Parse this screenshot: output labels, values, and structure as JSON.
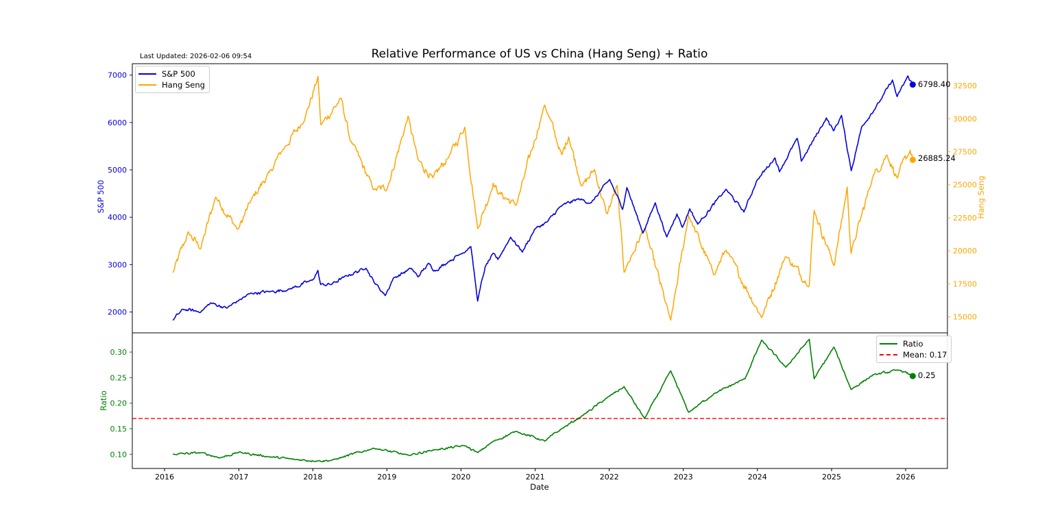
{
  "header": {
    "title": "Relative Performance of US vs China (Hang Seng) + Ratio",
    "last_updated": "Last Updated: 2026-02-06 09:54"
  },
  "colors": {
    "sp500": "#0000dd",
    "hang_seng": "#ffa500",
    "ratio": "#008000",
    "mean": "#ff0000"
  },
  "chart_data": [
    {
      "type": "line",
      "panel": "top",
      "x_range": [
        "2015-07-26",
        "2026-07-26"
      ],
      "xlabel": "",
      "x_ticks": [
        "2016",
        "2017",
        "2018",
        "2019",
        "2020",
        "2021",
        "2022",
        "2023",
        "2024",
        "2025",
        "2026"
      ],
      "grid": false,
      "legend_position": "upper-left",
      "y_left": {
        "label": "S&P 500",
        "range": [
          1560,
          7240
        ],
        "ticks": [
          "2000",
          "3000",
          "4000",
          "5000",
          "6000",
          "7000"
        ]
      },
      "y_right": {
        "label": "Hang Seng",
        "range": [
          13780,
          34170
        ],
        "ticks": [
          "15000",
          "17500",
          "20000",
          "22500",
          "25000",
          "27500",
          "30000",
          "32500"
        ]
      },
      "series": [
        {
          "name": "S&P 500",
          "axis": "left",
          "end_label": "6798.40",
          "points": [
            [
              "2016-02-11",
              1829
            ],
            [
              "2016-04-01",
              2060
            ],
            [
              "2016-06-27",
              2000
            ],
            [
              "2016-08-15",
              2190
            ],
            [
              "2016-11-04",
              2085
            ],
            [
              "2016-12-30",
              2240
            ],
            [
              "2017-03-01",
              2395
            ],
            [
              "2017-06-01",
              2430
            ],
            [
              "2017-09-01",
              2470
            ],
            [
              "2017-12-29",
              2673
            ],
            [
              "2018-01-26",
              2872
            ],
            [
              "2018-02-08",
              2581
            ],
            [
              "2018-04-02",
              2582
            ],
            [
              "2018-06-01",
              2734
            ],
            [
              "2018-09-20",
              2930
            ],
            [
              "2018-10-29",
              2640
            ],
            [
              "2018-12-24",
              2351
            ],
            [
              "2019-02-01",
              2706
            ],
            [
              "2019-05-01",
              2923
            ],
            [
              "2019-06-03",
              2744
            ],
            [
              "2019-07-26",
              3025
            ],
            [
              "2019-08-27",
              2869
            ],
            [
              "2019-11-01",
              3066
            ],
            [
              "2019-12-31",
              3230
            ],
            [
              "2020-02-19",
              3386
            ],
            [
              "2020-03-23",
              2237
            ],
            [
              "2020-04-29",
              2939
            ],
            [
              "2020-06-08",
              3232
            ],
            [
              "2020-07-01",
              3115
            ],
            [
              "2020-09-02",
              3580
            ],
            [
              "2020-10-30",
              3270
            ],
            [
              "2020-12-31",
              3756
            ],
            [
              "2021-03-01",
              3901
            ],
            [
              "2021-05-07",
              4232
            ],
            [
              "2021-08-02",
              4387
            ],
            [
              "2021-10-04",
              4300
            ],
            [
              "2022-01-03",
              4796
            ],
            [
              "2022-03-08",
              4170
            ],
            [
              "2022-03-29",
              4631
            ],
            [
              "2022-06-16",
              3666
            ],
            [
              "2022-08-16",
              4305
            ],
            [
              "2022-10-12",
              3577
            ],
            [
              "2022-12-01",
              4076
            ],
            [
              "2022-12-28",
              3783
            ],
            [
              "2023-02-02",
              4179
            ],
            [
              "2023-03-13",
              3855
            ],
            [
              "2023-07-31",
              4589
            ],
            [
              "2023-10-27",
              4117
            ],
            [
              "2023-12-29",
              4770
            ],
            [
              "2024-03-28",
              5254
            ],
            [
              "2024-04-19",
              4967
            ],
            [
              "2024-07-16",
              5667
            ],
            [
              "2024-08-05",
              5186
            ],
            [
              "2024-12-06",
              6090
            ],
            [
              "2025-01-10",
              5827
            ],
            [
              "2025-02-19",
              6144
            ],
            [
              "2025-04-08",
              4982
            ],
            [
              "2025-05-30",
              5912
            ],
            [
              "2025-08-29",
              6460
            ],
            [
              "2025-10-28",
              6890
            ],
            [
              "2025-11-20",
              6538
            ],
            [
              "2026-01-12",
              6977
            ],
            [
              "2026-02-05",
              6798.4
            ]
          ]
        },
        {
          "name": "Hang Seng",
          "axis": "right",
          "end_label": "26885.24",
          "points": [
            [
              "2016-02-11",
              18319
            ],
            [
              "2016-04-27",
              21388
            ],
            [
              "2016-06-27",
              20172
            ],
            [
              "2016-09-09",
              24099
            ],
            [
              "2016-12-28",
              21574
            ],
            [
              "2017-03-01",
              23776
            ],
            [
              "2017-06-01",
              25925
            ],
            [
              "2017-08-01",
              27540
            ],
            [
              "2017-11-22",
              30003
            ],
            [
              "2018-01-26",
              33154
            ],
            [
              "2018-02-09",
              29507
            ],
            [
              "2018-05-22",
              31541
            ],
            [
              "2018-07-02",
              28500
            ],
            [
              "2018-10-30",
              24585
            ],
            [
              "2019-01-03",
              24739
            ],
            [
              "2019-04-15",
              30129
            ],
            [
              "2019-06-03",
              26893
            ],
            [
              "2019-08-15",
              25495
            ],
            [
              "2019-11-01",
              27100
            ],
            [
              "2020-01-20",
              29348
            ],
            [
              "2020-03-23",
              21696
            ],
            [
              "2020-06-08",
              25057
            ],
            [
              "2020-06-30",
              24427
            ],
            [
              "2020-09-30",
              23459
            ],
            [
              "2021-02-17",
              31084
            ],
            [
              "2021-05-12",
              27231
            ],
            [
              "2021-06-15",
              28638
            ],
            [
              "2021-08-20",
              24849
            ],
            [
              "2021-10-20",
              26136
            ],
            [
              "2021-12-20",
              22745
            ],
            [
              "2022-02-09",
              24924
            ],
            [
              "2022-03-15",
              18415
            ],
            [
              "2022-06-24",
              21719
            ],
            [
              "2022-10-31",
              14687
            ],
            [
              "2023-01-27",
              22689
            ],
            [
              "2023-05-31",
              18234
            ],
            [
              "2023-07-31",
              20079
            ],
            [
              "2024-01-22",
              14961
            ],
            [
              "2024-05-20",
              19636
            ],
            [
              "2024-09-13",
              17369
            ],
            [
              "2024-10-07",
              23100
            ],
            [
              "2025-01-13",
              18874
            ],
            [
              "2025-03-19",
              24771
            ],
            [
              "2025-04-07",
              19828
            ],
            [
              "2025-07-24",
              25667
            ],
            [
              "2025-10-02",
              27287
            ],
            [
              "2025-11-20",
              25520
            ],
            [
              "2026-01-23",
              27608
            ],
            [
              "2026-02-05",
              26885.24
            ]
          ]
        }
      ]
    },
    {
      "type": "line",
      "panel": "bottom",
      "x_range": [
        "2015-07-26",
        "2026-07-26"
      ],
      "xlabel": "Date",
      "x_ticks": [
        "2016",
        "2017",
        "2018",
        "2019",
        "2020",
        "2021",
        "2022",
        "2023",
        "2024",
        "2025",
        "2026"
      ],
      "grid": false,
      "legend_position": "upper-right",
      "y_left": {
        "label": "Ratio",
        "range": [
          0.0722,
          0.3376
        ],
        "ticks": [
          "0.10",
          "0.15",
          "0.20",
          "0.25",
          "0.30"
        ]
      },
      "mean": {
        "name": "Mean: 0.17",
        "value": 0.17
      },
      "series": [
        {
          "name": "Ratio",
          "axis": "left",
          "end_label": "0.25",
          "points": [
            [
              "2016-02-11",
              0.1
            ],
            [
              "2016-07-01",
              0.103
            ],
            [
              "2016-10-01",
              0.093
            ],
            [
              "2017-01-02",
              0.104
            ],
            [
              "2017-06-01",
              0.095
            ],
            [
              "2017-10-01",
              0.09
            ],
            [
              "2018-01-26",
              0.087
            ],
            [
              "2018-04-02",
              0.088
            ],
            [
              "2018-10-30",
              0.112
            ],
            [
              "2019-04-15",
              0.098
            ],
            [
              "2019-08-15",
              0.108
            ],
            [
              "2020-01-20",
              0.117
            ],
            [
              "2020-03-23",
              0.103
            ],
            [
              "2020-06-08",
              0.125
            ],
            [
              "2020-09-30",
              0.145
            ],
            [
              "2021-02-17",
              0.126
            ],
            [
              "2021-05-12",
              0.15
            ],
            [
              "2021-08-20",
              0.175
            ],
            [
              "2021-12-20",
              0.21
            ],
            [
              "2022-03-15",
              0.232
            ],
            [
              "2022-06-24",
              0.17
            ],
            [
              "2022-10-31",
              0.263
            ],
            [
              "2023-01-27",
              0.182
            ],
            [
              "2023-05-31",
              0.218
            ],
            [
              "2023-11-01",
              0.248
            ],
            [
              "2024-01-22",
              0.323
            ],
            [
              "2024-05-20",
              0.27
            ],
            [
              "2024-09-13",
              0.325
            ],
            [
              "2024-10-07",
              0.248
            ],
            [
              "2025-01-13",
              0.31
            ],
            [
              "2025-04-07",
              0.227
            ],
            [
              "2025-07-24",
              0.255
            ],
            [
              "2025-12-01",
              0.265
            ],
            [
              "2026-02-05",
              0.253
            ]
          ]
        }
      ]
    }
  ]
}
